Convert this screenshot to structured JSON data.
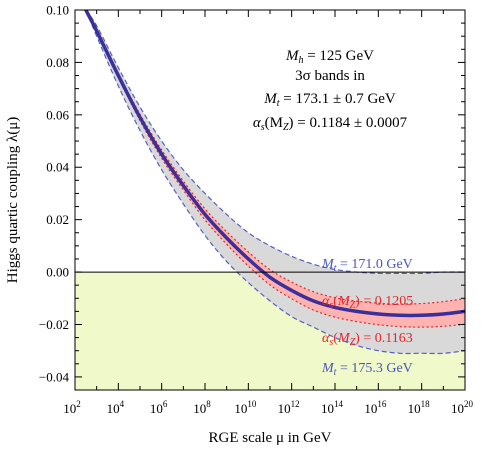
{
  "chart_data": {
    "type": "line",
    "xlabel": "RGE scale μ in GeV",
    "ylabel": "Higgs quartic coupling λ(μ)",
    "x_scale": "log",
    "xlim": [
      100,
      1e+20
    ],
    "ylim": [
      -0.045,
      0.1
    ],
    "x_ticks": [
      {
        "base": "10",
        "exp": "2"
      },
      {
        "base": "10",
        "exp": "4"
      },
      {
        "base": "10",
        "exp": "6"
      },
      {
        "base": "10",
        "exp": "8"
      },
      {
        "base": "10",
        "exp": "10"
      },
      {
        "base": "10",
        "exp": "12"
      },
      {
        "base": "10",
        "exp": "14"
      },
      {
        "base": "10",
        "exp": "16"
      },
      {
        "base": "10",
        "exp": "18"
      },
      {
        "base": "10",
        "exp": "20"
      }
    ],
    "y_ticks": [
      "0.10",
      "0.08",
      "0.06",
      "0.04",
      "0.02",
      "0.00",
      "−0.02",
      "−0.04"
    ],
    "annotation": {
      "mh": "M",
      "mh_sub": "h",
      "mh_val": " = 125 GeV",
      "bands": "3σ bands in",
      "mt": "M",
      "mt_sub": "t",
      "mt_val": " = 173.1 ± 0.7 GeV",
      "as": "α",
      "as_sub": "s",
      "as_arg": "(M",
      "as_arg_sub": "Z",
      "as_val": ") = 0.1184 ± 0.0007"
    },
    "band_labels": {
      "mt_low": "171.0 GeV",
      "mt_high": "175.3 GeV",
      "as_high": "0.1205",
      "as_low": "0.1163"
    },
    "series": [
      {
        "role": "central",
        "color": "#3b2f9a",
        "x": [
          2.5,
          3,
          4,
          5,
          6,
          7,
          8,
          9,
          10,
          11,
          12,
          13,
          14,
          15,
          16,
          17,
          18,
          19,
          20
        ],
        "y": [
          0.1,
          0.092,
          0.075,
          0.059,
          0.045,
          0.033,
          0.022,
          0.013,
          0.005,
          -0.002,
          -0.007,
          -0.011,
          -0.0135,
          -0.015,
          -0.016,
          -0.0165,
          -0.0165,
          -0.016,
          -0.015
        ]
      },
      {
        "role": "Mt 171.0 (upper dashed)",
        "color": "#5560c0",
        "x": [
          2.5,
          3,
          4,
          5,
          6,
          7,
          8,
          9,
          10,
          11,
          12,
          13,
          14,
          15,
          16,
          17,
          18,
          19,
          20
        ],
        "y": [
          0.1,
          0.094,
          0.078,
          0.063,
          0.05,
          0.039,
          0.03,
          0.022,
          0.015,
          0.01,
          0.006,
          0.003,
          0.001,
          0.0,
          -0.0005,
          -0.0005,
          -0.0005,
          0.0,
          0.0
        ]
      },
      {
        "role": "Mt 175.3 (lower dashed)",
        "color": "#5560c0",
        "x": [
          2.5,
          3,
          4,
          5,
          6,
          7,
          8,
          9,
          10,
          11,
          12,
          13,
          14,
          15,
          16,
          17,
          18,
          19,
          20
        ],
        "y": [
          0.1,
          0.09,
          0.071,
          0.054,
          0.039,
          0.026,
          0.014,
          0.004,
          -0.004,
          -0.011,
          -0.017,
          -0.021,
          -0.025,
          -0.028,
          -0.03,
          -0.031,
          -0.031,
          -0.031,
          -0.03
        ]
      },
      {
        "role": "alpha_s 0.1205 (upper dotted)",
        "color": "#e3262b",
        "x": [
          2.5,
          3,
          4,
          5,
          6,
          7,
          8,
          9,
          10,
          11,
          12,
          13,
          14,
          15,
          16,
          17,
          18,
          19,
          20
        ],
        "y": [
          0.1,
          0.0925,
          0.0758,
          0.0602,
          0.0466,
          0.0347,
          0.0241,
          0.0154,
          0.0077,
          0.0009,
          -0.0038,
          -0.0075,
          -0.0098,
          -0.0111,
          -0.0119,
          -0.0122,
          -0.012,
          -0.0113,
          -0.0101
        ]
      },
      {
        "role": "alpha_s 0.1163 (lower dotted)",
        "color": "#e3262b",
        "x": [
          2.5,
          3,
          4,
          5,
          6,
          7,
          8,
          9,
          10,
          11,
          12,
          13,
          14,
          15,
          16,
          17,
          18,
          19,
          20
        ],
        "y": [
          0.1,
          0.0915,
          0.0742,
          0.0578,
          0.0434,
          0.0313,
          0.0199,
          0.0106,
          0.0023,
          -0.0049,
          -0.0102,
          -0.0145,
          -0.0172,
          -0.0189,
          -0.0201,
          -0.0208,
          -0.021,
          -0.0207,
          -0.0199
        ]
      }
    ],
    "colors": {
      "central": "#3b2f9a",
      "mt_band": "#d9d9d9",
      "as_band": "#ffb3b0",
      "negative_region": "#eff9c9",
      "dashed": "#5560c0",
      "dotted": "#e3262b"
    },
    "grid": false
  }
}
